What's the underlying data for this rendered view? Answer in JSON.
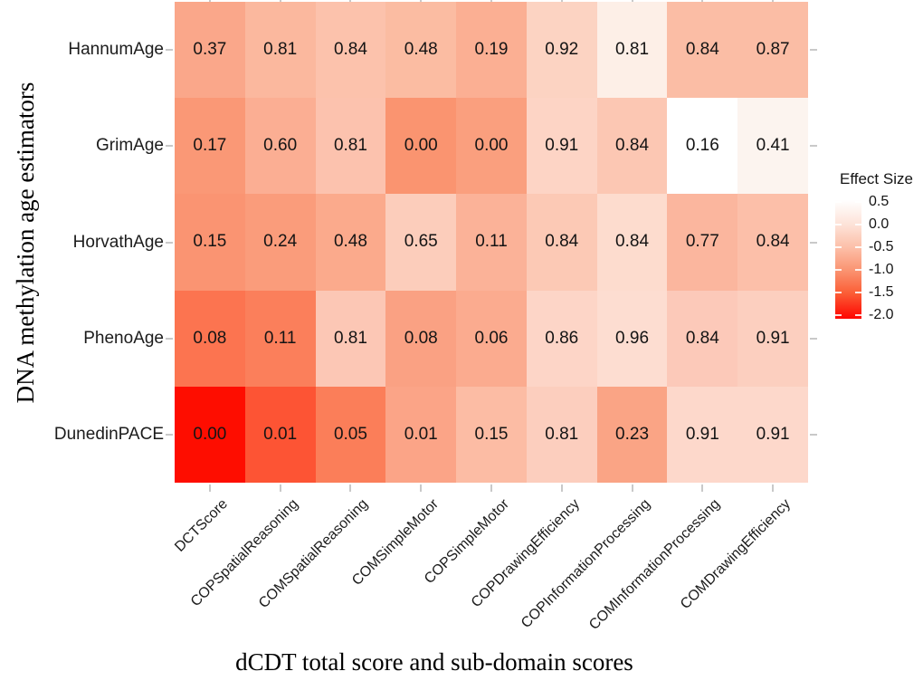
{
  "figure": {
    "background": "#ffffff"
  },
  "chart_data": {
    "type": "heatmap",
    "title": "",
    "xlabel": "dCDT total score and sub-domain scores",
    "ylabel": "DNA methylation age estimators",
    "rows": [
      "HannumAge",
      "GrimAge",
      "HorvathAge",
      "PhenoAge",
      "DunedinPACE"
    ],
    "columns": [
      "DCTScore",
      "COPSpatialReasoning",
      "COMSpatialReasoning",
      "COMSimpleMotor",
      "COPSimpleMotor",
      "COPDrawingEfficiency",
      "COPInformationProcessing",
      "COMInformationProcessing",
      "COMDrawingEfficiency"
    ],
    "values": [
      [
        "0.37",
        "0.81",
        "0.84",
        "0.48",
        "0.19",
        "0.92",
        "0.81",
        "0.84",
        "0.87"
      ],
      [
        "0.17",
        "0.60",
        "0.81",
        "0.00",
        "0.00",
        "0.91",
        "0.84",
        "0.16",
        "0.41"
      ],
      [
        "0.15",
        "0.24",
        "0.48",
        "0.65",
        "0.11",
        "0.84",
        "0.84",
        "0.77",
        "0.84"
      ],
      [
        "0.08",
        "0.11",
        "0.81",
        "0.08",
        "0.06",
        "0.86",
        "0.96",
        "0.84",
        "0.91"
      ],
      [
        "0.00",
        "0.01",
        "0.05",
        "0.01",
        "0.15",
        "0.81",
        "0.23",
        "0.91",
        "0.91"
      ]
    ],
    "cell_colors": [
      [
        "#FAA78A",
        "#FBB89E",
        "#FCC2AC",
        "#FBBCA2",
        "#FBAF93",
        "#FCD3C2",
        "#FDEFE7",
        "#FBBDA5",
        "#FBBDA5"
      ],
      [
        "#FA9876",
        "#FBAE93",
        "#FCC2AE",
        "#FA9470",
        "#FA9F7E",
        "#FDD4C5",
        "#FCC7B3",
        "#FFFFFF",
        "#FCF4EF"
      ],
      [
        "#FA9472",
        "#FA9C7B",
        "#FBAA8C",
        "#FCCDBB",
        "#FBB298",
        "#FCC9B5",
        "#FDDCCE",
        "#FBB69E",
        "#FCBFA9"
      ],
      [
        "#FC7450",
        "#FB7F5B",
        "#FCC7B5",
        "#FAA183",
        "#FBAB8F",
        "#FDD5C7",
        "#FDDDD1",
        "#FCC9B9",
        "#FCCFBF"
      ],
      [
        "#FE0D00",
        "#FD5434",
        "#FB7E59",
        "#FBA487",
        "#FCBCA4",
        "#FCCEBE",
        "#FAA485",
        "#FDD8CB",
        "#FDD8CB"
      ]
    ],
    "legend": {
      "title": "Effect Size",
      "tick_labels": [
        "0.5",
        "0.0",
        "-0.5",
        "-1.0",
        "-1.5",
        "-2.0"
      ],
      "range": [
        0.5,
        -2.0
      ],
      "position": "right",
      "gradient_stops": [
        {
          "pos": "0%",
          "color": "#FFFFFF"
        },
        {
          "pos": "21%",
          "color": "#FDE2D7"
        },
        {
          "pos": "40%",
          "color": "#FCBFA8"
        },
        {
          "pos": "59%",
          "color": "#FA9472"
        },
        {
          "pos": "78%",
          "color": "#FB5F37"
        },
        {
          "pos": "100%",
          "color": "#FE0500"
        }
      ]
    },
    "layout_hints": {
      "grid": "off",
      "x_tick_angle": 45,
      "tick_color": "#c9c9c9"
    }
  }
}
